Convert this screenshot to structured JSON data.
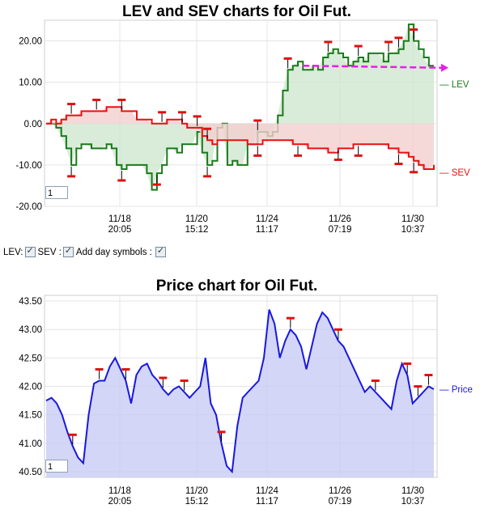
{
  "chart_data": [
    {
      "type": "area",
      "title": "LEV and SEV charts for Oil Fut.",
      "ylim": [
        -20,
        25
      ],
      "y_ticks": [
        "20.00",
        "10.00",
        "0.00",
        "-10.00",
        "-20.00"
      ],
      "y_tick_values": [
        20,
        10,
        0,
        -10,
        -20
      ],
      "x_ticks": [
        {
          "date": "11/18",
          "time": "20:05"
        },
        {
          "date": "11/20",
          "time": "15:12"
        },
        {
          "date": "11/24",
          "time": "11:17"
        },
        {
          "date": "11/26",
          "time": "07:19"
        },
        {
          "date": "11/30",
          "time": "10:37"
        }
      ],
      "grid": true,
      "legend_position": "right",
      "zoom_value": "1",
      "series": [
        {
          "name": "LEV",
          "color": "#1a7a1a",
          "fill": "#cfe6cf",
          "values": [
            0,
            0,
            -1,
            -3,
            -6,
            -10,
            -6,
            -5,
            -5,
            -6,
            -6,
            -6,
            -5,
            -6,
            -10,
            -11,
            -10,
            -10,
            -10,
            -10,
            -12,
            -16,
            -12,
            -10,
            -6,
            -6,
            -7,
            -5,
            -5,
            -5,
            -2,
            -7,
            -10,
            -9,
            -1,
            0,
            -10,
            -9,
            -10,
            -10,
            -5,
            -5,
            -2,
            -2,
            -3,
            -2,
            2,
            8,
            13,
            14,
            15,
            13,
            13,
            14,
            13,
            16,
            17,
            18,
            17,
            16,
            14,
            15,
            16,
            15,
            17,
            17,
            17,
            15,
            17,
            17,
            18,
            20,
            24,
            20,
            18,
            16,
            14,
            14
          ]
        },
        {
          "name": "SEV",
          "color": "#e81010",
          "fill": "#f3d0d0",
          "values": [
            0,
            1,
            0,
            1,
            2,
            2,
            2,
            3,
            3,
            3,
            3,
            3,
            4,
            4,
            4,
            3,
            3,
            3,
            1,
            1,
            1,
            0,
            0,
            0,
            1,
            1,
            1,
            0,
            -1,
            -1,
            -1,
            -3,
            -4,
            -5,
            -4,
            -4,
            -4,
            -4,
            -4,
            -4,
            -5,
            -5,
            -5,
            -4,
            -4,
            -4,
            -4,
            -4,
            -4,
            -5,
            -5,
            -5,
            -6,
            -6,
            -6,
            -6,
            -7,
            -7,
            -6,
            -6,
            -6,
            -5,
            -5,
            -5,
            -5,
            -5,
            -5,
            -5,
            -6,
            -6,
            -7,
            -7,
            -8,
            -9,
            -10,
            -11,
            -11,
            -10
          ]
        }
      ],
      "day_markers_above": [
        5,
        10,
        15,
        23,
        27,
        30,
        32,
        42,
        48,
        56,
        62,
        68,
        70,
        73
      ],
      "day_markers_below": [
        5,
        15,
        22,
        32,
        42,
        50,
        58,
        62,
        70,
        73
      ],
      "target_arrow": {
        "color": "#e81ee8",
        "y_start": 14,
        "y_end": 13.5
      }
    },
    {
      "type": "area",
      "title": "Price chart for Oil Fut.",
      "ylim": [
        40.4,
        43.6
      ],
      "y_ticks": [
        "43.50",
        "43.00",
        "42.50",
        "42.00",
        "41.50",
        "41.00",
        "40.50"
      ],
      "y_tick_values": [
        43.5,
        43.0,
        42.5,
        42.0,
        41.5,
        41.0,
        40.5
      ],
      "x_ticks": [
        {
          "date": "11/18",
          "time": "20:05"
        },
        {
          "date": "11/20",
          "time": "15:12"
        },
        {
          "date": "11/24",
          "time": "11:17"
        },
        {
          "date": "11/26",
          "time": "07:19"
        },
        {
          "date": "11/30",
          "time": "10:37"
        }
      ],
      "grid": true,
      "legend_position": "right",
      "zoom_value": "1",
      "series": [
        {
          "name": "Price",
          "color": "#1818e0",
          "fill": "#c8ccf4",
          "values": [
            41.75,
            41.8,
            41.7,
            41.5,
            41.2,
            40.95,
            40.75,
            40.65,
            41.5,
            42.05,
            42.1,
            42.1,
            42.35,
            42.5,
            42.3,
            42.1,
            41.7,
            42.2,
            42.35,
            42.4,
            42.2,
            42.1,
            41.95,
            41.85,
            41.95,
            42.0,
            41.9,
            41.8,
            41.9,
            42.0,
            42.5,
            41.7,
            41.5,
            41.0,
            40.6,
            40.5,
            41.3,
            41.8,
            41.9,
            42.0,
            42.1,
            42.5,
            43.35,
            43.1,
            42.5,
            42.8,
            43.0,
            42.9,
            42.7,
            42.3,
            42.7,
            43.1,
            43.3,
            43.2,
            43.0,
            42.8,
            42.7,
            42.5,
            42.3,
            42.1,
            41.9,
            42.0,
            41.9,
            41.8,
            41.7,
            41.6,
            42.1,
            42.4,
            42.2,
            41.7,
            41.8,
            41.9,
            42.0,
            41.95
          ]
        }
      ],
      "day_markers": [
        5,
        10,
        15,
        22,
        26,
        33,
        46,
        55,
        62,
        68,
        70,
        72
      ]
    }
  ],
  "controls": {
    "lev_label": "LEV:",
    "sev_label": "SEV :",
    "day_label": "Add day symbols :"
  }
}
